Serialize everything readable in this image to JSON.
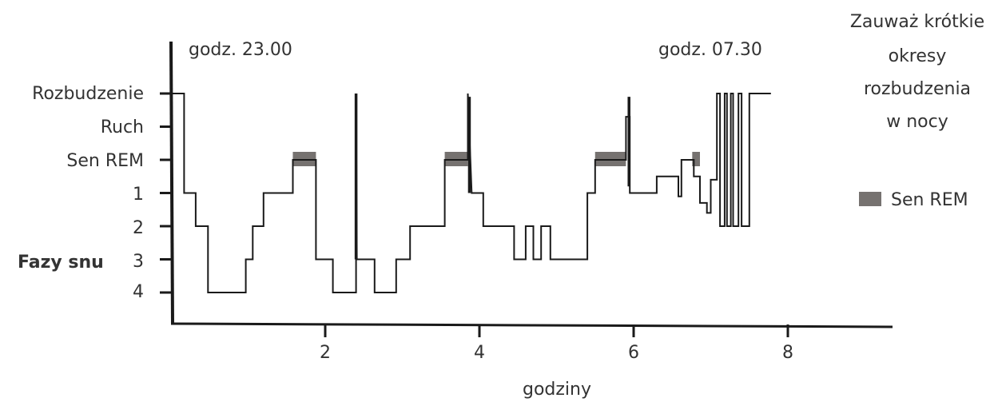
{
  "chart_data": {
    "type": "line",
    "xlabel": "godziny",
    "ylabel": "Fazy snu",
    "xlim": [
      0,
      9.4
    ],
    "x_ticks": [
      2,
      4,
      6,
      8
    ],
    "y_levels": [
      "Rozbudzenie",
      "Ruch",
      "Sen REM",
      "1",
      "2",
      "3",
      "4"
    ],
    "annotations": {
      "start": "godz. 23.00",
      "end": "godz. 07.30",
      "note": [
        "Zauważ krótkie",
        "okresy",
        "rozbudzenia",
        "w nocy"
      ]
    },
    "legend": {
      "label": "Sen REM",
      "color": "#767270",
      "position": "right"
    },
    "line_color": "#1a1a1a",
    "rem_color": "#767270",
    "hypnogram": [
      [
        0.0,
        6
      ],
      [
        0.17,
        6
      ],
      [
        0.17,
        3
      ],
      [
        0.32,
        3
      ],
      [
        0.32,
        2
      ],
      [
        0.48,
        2
      ],
      [
        0.48,
        0
      ],
      [
        0.97,
        0
      ],
      [
        0.97,
        1
      ],
      [
        1.06,
        1
      ],
      [
        1.06,
        2
      ],
      [
        1.2,
        2
      ],
      [
        1.2,
        3
      ],
      [
        1.58,
        3
      ],
      [
        1.58,
        4
      ],
      [
        1.88,
        4
      ],
      [
        1.88,
        1
      ],
      [
        2.1,
        1
      ],
      [
        2.1,
        0
      ],
      [
        2.4,
        0
      ],
      [
        2.4,
        6
      ],
      [
        2.41,
        1
      ],
      [
        2.64,
        1
      ],
      [
        2.64,
        0
      ],
      [
        2.92,
        0
      ],
      [
        2.92,
        1
      ],
      [
        3.1,
        1
      ],
      [
        3.1,
        2
      ],
      [
        3.55,
        2
      ],
      [
        3.55,
        4
      ],
      [
        3.85,
        4
      ],
      [
        3.85,
        6
      ],
      [
        3.9,
        3
      ],
      [
        4.05,
        3
      ],
      [
        4.05,
        2
      ],
      [
        4.45,
        2
      ],
      [
        4.45,
        1
      ],
      [
        4.6,
        1
      ],
      [
        4.6,
        2
      ],
      [
        4.7,
        2
      ],
      [
        4.7,
        1
      ],
      [
        4.8,
        1
      ],
      [
        4.8,
        2
      ],
      [
        4.92,
        2
      ],
      [
        4.92,
        1
      ],
      [
        5.4,
        1
      ],
      [
        5.4,
        3
      ],
      [
        5.5,
        3
      ],
      [
        5.5,
        4
      ],
      [
        5.9,
        4
      ],
      [
        5.9,
        5.3
      ],
      [
        5.95,
        5.3
      ],
      [
        5.95,
        3
      ],
      [
        6.3,
        3
      ],
      [
        6.3,
        3.5
      ],
      [
        6.58,
        3.5
      ],
      [
        6.58,
        2.9
      ],
      [
        6.62,
        2.9
      ],
      [
        6.62,
        4
      ],
      [
        6.78,
        4
      ],
      [
        6.78,
        3.5
      ],
      [
        6.86,
        3.5
      ],
      [
        6.86,
        2.7
      ],
      [
        6.95,
        2.7
      ],
      [
        6.95,
        2.4
      ],
      [
        7.0,
        2.4
      ],
      [
        7.0,
        3.4
      ],
      [
        7.08,
        3.4
      ],
      [
        7.08,
        6
      ],
      [
        7.12,
        6
      ],
      [
        7.12,
        2
      ],
      [
        7.18,
        2
      ],
      [
        7.18,
        6
      ],
      [
        7.21,
        6
      ],
      [
        7.21,
        2
      ],
      [
        7.26,
        2
      ],
      [
        7.26,
        6
      ],
      [
        7.29,
        6
      ],
      [
        7.29,
        2
      ],
      [
        7.36,
        2
      ],
      [
        7.36,
        6
      ],
      [
        7.4,
        6
      ],
      [
        7.4,
        2
      ],
      [
        7.5,
        2
      ],
      [
        7.5,
        6
      ],
      [
        7.78,
        6
      ]
    ],
    "spikes": [
      {
        "x": 2.4,
        "from": 1,
        "to": 6
      },
      {
        "x": 3.87,
        "from": 3,
        "to": 5.9
      },
      {
        "x": 5.94,
        "from": 3.2,
        "to": 5.9
      }
    ],
    "rem_periods": [
      {
        "start": 1.58,
        "end": 1.88
      },
      {
        "start": 3.55,
        "end": 3.85
      },
      {
        "start": 5.5,
        "end": 5.9
      },
      {
        "start": 6.76,
        "end": 6.86
      }
    ]
  }
}
